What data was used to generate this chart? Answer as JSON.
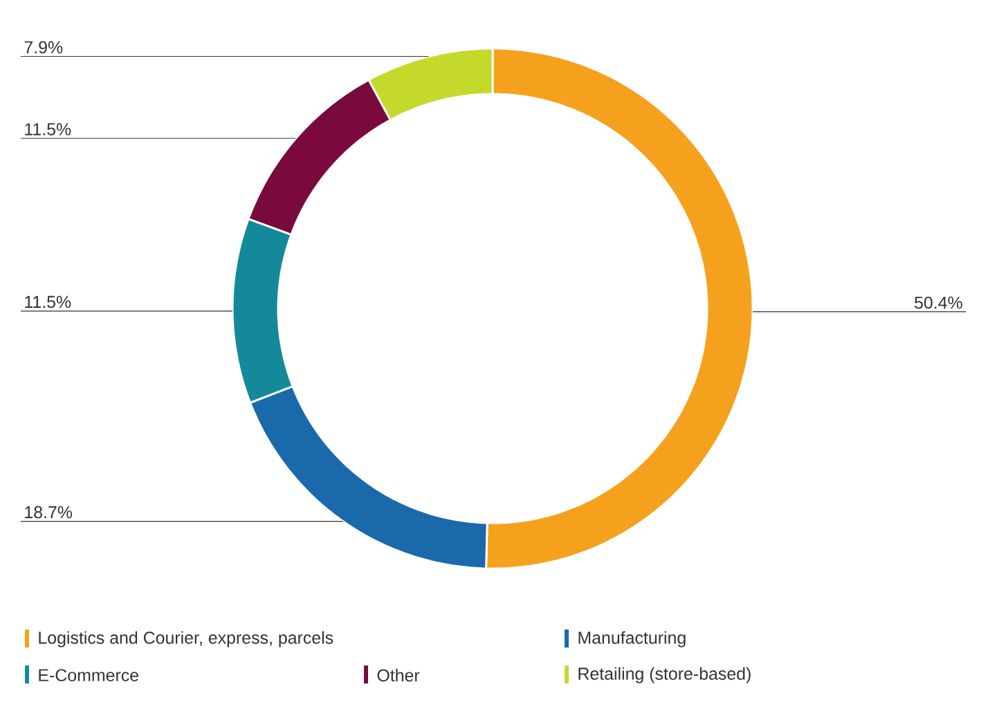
{
  "chart_data": {
    "type": "donut",
    "categories": [
      "Logistics and Courier, express, parcels",
      "Manufacturing",
      "E-Commerce",
      "Other",
      "Retailing (store-based)"
    ],
    "values": [
      50.4,
      18.7,
      11.5,
      11.5,
      7.9
    ],
    "value_labels": [
      "50.4%",
      "18.7%",
      "11.5%",
      "11.5%",
      "7.9%"
    ],
    "colors": [
      "#f6a11d",
      "#1a6aab",
      "#14899a",
      "#7a0a3e",
      "#c5d92d"
    ],
    "legend": "bottom"
  }
}
